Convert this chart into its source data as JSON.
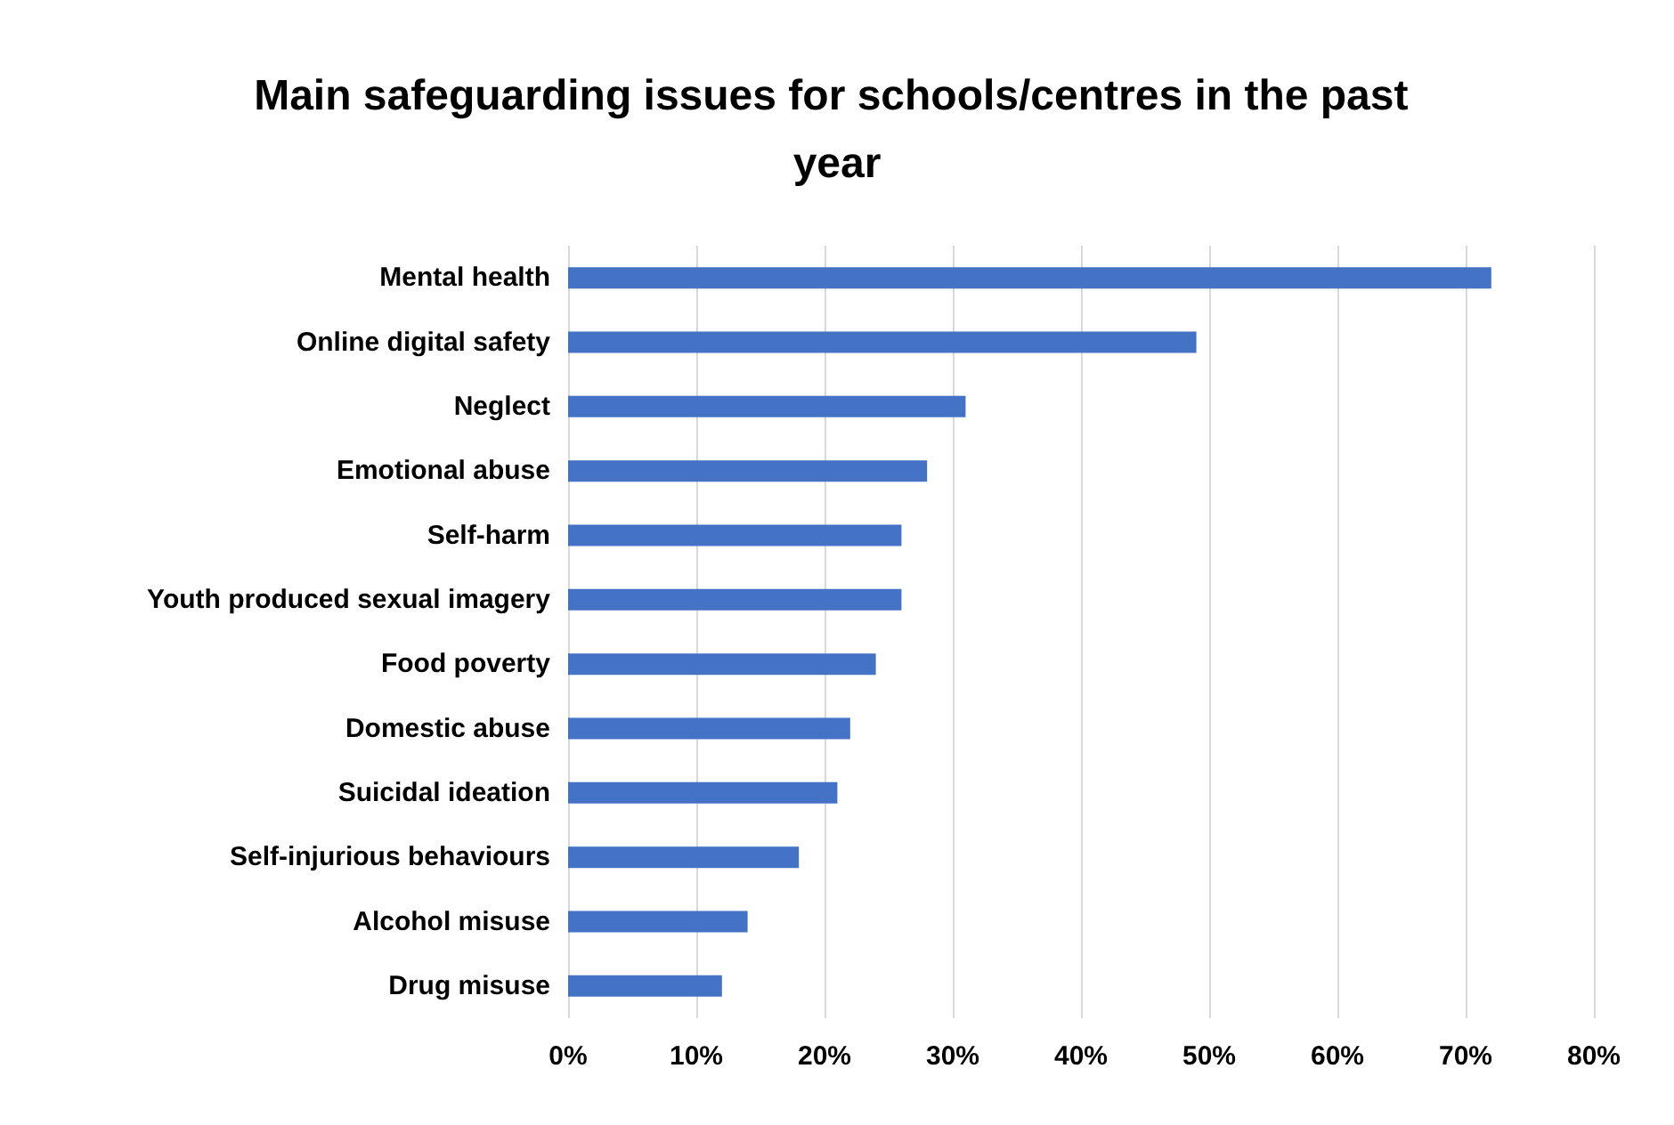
{
  "chart_data": {
    "type": "bar",
    "orientation": "horizontal",
    "title": "Main safeguarding issues for schools/centres in the past year",
    "categories": [
      "Mental health",
      "Online digital safety",
      "Neglect",
      "Emotional abuse",
      "Self-harm",
      "Youth produced sexual imagery",
      "Food poverty",
      "Domestic abuse",
      "Suicidal ideation",
      "Self-injurious behaviours",
      "Alcohol misuse",
      "Drug misuse"
    ],
    "values": [
      72,
      49,
      31,
      28,
      26,
      26,
      24,
      22,
      21,
      18,
      14,
      12
    ],
    "color": "#4472c4",
    "xlim": [
      0,
      80
    ],
    "xticks": [
      {
        "value": 0,
        "label": "0%"
      },
      {
        "value": 10,
        "label": "10%"
      },
      {
        "value": 20,
        "label": "20%"
      },
      {
        "value": 30,
        "label": "30%"
      },
      {
        "value": 40,
        "label": "40%"
      },
      {
        "value": 50,
        "label": "50%"
      },
      {
        "value": 60,
        "label": "60%"
      },
      {
        "value": 70,
        "label": "70%"
      },
      {
        "value": 80,
        "label": "80%"
      }
    ],
    "grid": "x"
  }
}
